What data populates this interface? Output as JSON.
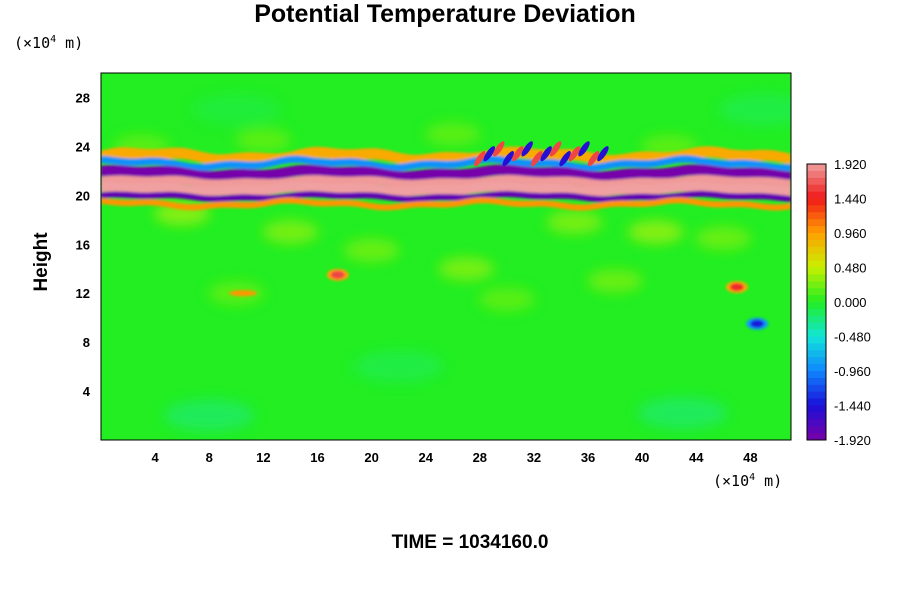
{
  "chart_data": {
    "type": "heatmap",
    "title": "Potential Temperature Deviation",
    "xlabel": "",
    "ylabel": "Height",
    "x_unit_prefix": "(×10",
    "x_unit_exp": "4",
    "x_unit_suffix": " m)",
    "y_unit_prefix": "(×10",
    "y_unit_exp": "4",
    "y_unit_suffix": " m)",
    "xlim": [
      0,
      51
    ],
    "ylim": [
      0,
      30
    ],
    "x_ticks": [
      4,
      8,
      12,
      16,
      20,
      24,
      28,
      32,
      36,
      40,
      44,
      48
    ],
    "y_ticks": [
      4,
      8,
      12,
      16,
      20,
      24,
      28
    ],
    "colorbar": {
      "range": [
        -1.92,
        1.92
      ],
      "tick_labels": [
        "1.920",
        "1.440",
        "0.960",
        "0.480",
        "0.000",
        "-0.480",
        "-0.960",
        "-1.440",
        "-1.920"
      ],
      "tick_values": [
        1.92,
        1.44,
        0.96,
        0.48,
        0.0,
        -0.48,
        -0.96,
        -1.44,
        -1.92
      ]
    },
    "features": [
      {
        "name": "upper warm band",
        "y_center": 20.8,
        "value": 1.9
      },
      {
        "name": "upper cold band",
        "y_center": 21.6,
        "value": -1.9
      },
      {
        "name": "upper cold band lower",
        "y_center": 20.1,
        "value": -1.8
      },
      {
        "name": "warm patch",
        "x": 17.5,
        "y": 13.5,
        "value": 1.6
      },
      {
        "name": "warm patch",
        "x": 47,
        "y": 12.5,
        "value": 1.5
      },
      {
        "name": "cold patch",
        "x": 48.5,
        "y": 9.5,
        "value": -1.4
      }
    ],
    "background_value": 0.0
  },
  "footer": {
    "time_label": "TIME = 1034160.0"
  }
}
